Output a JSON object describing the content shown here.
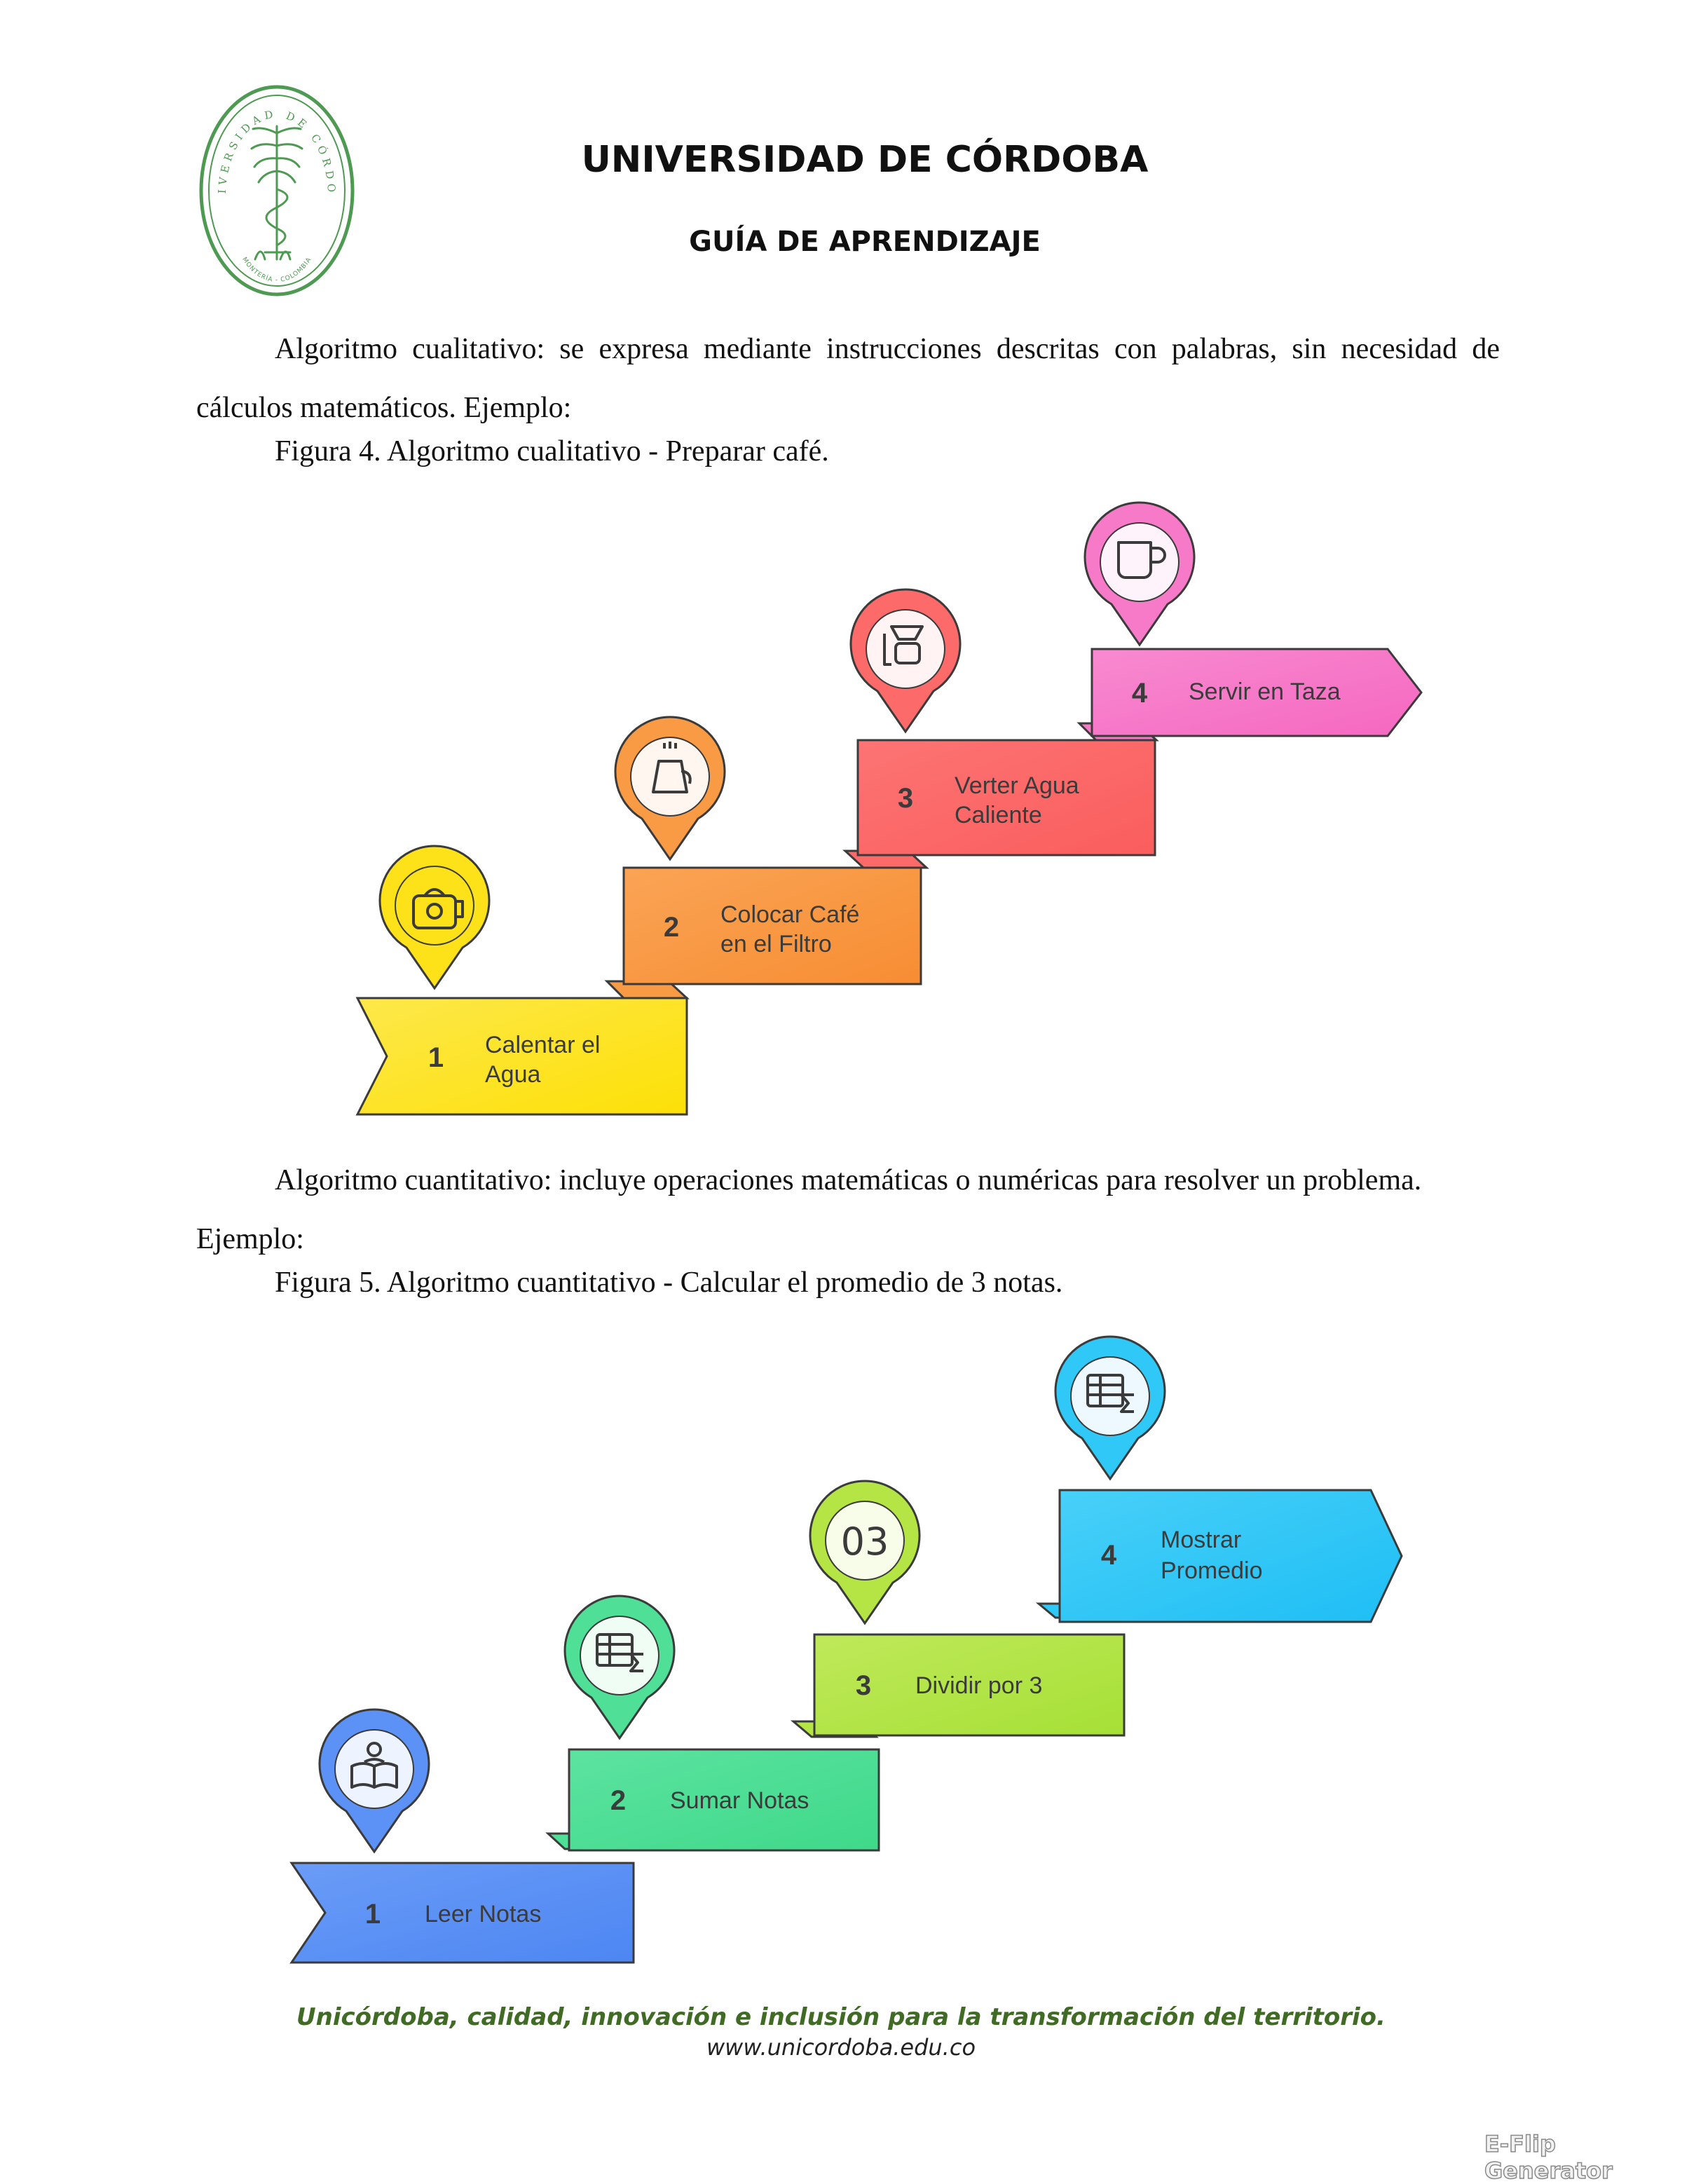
{
  "header": {
    "title": "UNIVERSIDAD DE CÓRDOBA",
    "subtitle": "GUÍA DE APRENDIZAJE",
    "seal": {
      "ring_text": "UNIVERSIDAD DE CÓRDOBA",
      "bottom_text": "MONTERÍA - COLOMBIA",
      "color": "#4f9a52"
    }
  },
  "section1": {
    "paragraph": "Algoritmo cualitativo: se expresa mediante instrucciones descritas con palabras, sin necesidad de cálculos matemáticos. Ejemplo:",
    "caption": "Figura 4. Algoritmo cualitativo - Preparar café.",
    "steps": [
      {
        "num": "1",
        "line1": "Calentar el",
        "line2": "Agua",
        "color": "#fde21a",
        "icon": "kettle-icon"
      },
      {
        "num": "2",
        "line1": "Colocar Café",
        "line2": "en el Filtro",
        "color": "#f99a45",
        "icon": "coffee-pot-icon"
      },
      {
        "num": "3",
        "line1": "Verter Agua",
        "line2": "Caliente",
        "color": "#fc6a6a",
        "icon": "pour-over-icon"
      },
      {
        "num": "4",
        "line1": "Servir en Taza",
        "line2": "",
        "color": "#f77ac9",
        "icon": "cup-icon"
      }
    ]
  },
  "section2": {
    "paragraph": "Algoritmo cuantitativo: incluye operaciones matemáticas o numéricas para resolver un problema. Ejemplo:",
    "caption": "Figura 5. Algoritmo cuantitativo - Calcular el promedio de 3 notas.",
    "steps": [
      {
        "num": "1",
        "line1": "Leer Notas",
        "line2": "",
        "color": "#5c91f5",
        "icon": "reader-icon"
      },
      {
        "num": "2",
        "line1": "Sumar Notas",
        "line2": "",
        "color": "#4fdf97",
        "icon": "table-sum-icon"
      },
      {
        "num": "3",
        "line1": "Dividir por 3",
        "line2": "",
        "color": "#b4e544",
        "icon": "number-03-icon",
        "icon_text": "03"
      },
      {
        "num": "4",
        "line1": "Mostrar",
        "line2": "Promedio",
        "color": "#2fc8f7",
        "icon": "table-sum-icon"
      }
    ]
  },
  "footer": {
    "slogan": "Unicórdoba, calidad, innovación e inclusión para la transformación del territorio.",
    "url": "www.unicordoba.edu.co"
  },
  "watermark": "E-Flip Generator"
}
